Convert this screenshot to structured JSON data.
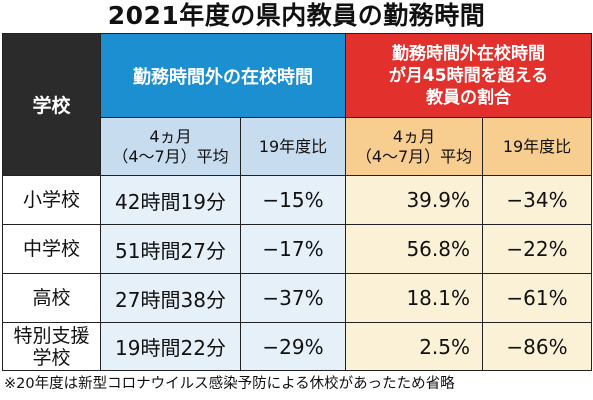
{
  "title": "2021年度の県内教員の勤務時間",
  "header": {
    "school": "学校",
    "group1": "勤務時間外の在校時間",
    "group2_line1": "勤務時間外在校時間",
    "group2_line2": "が月45時間を超える",
    "group2_line3": "教員の割合",
    "sub_period_line1": "4ヵ月",
    "sub_period_line2": "（4〜7月）平均",
    "sub_compare": "19年度比"
  },
  "rows": [
    {
      "school_line1": "小学校",
      "school_line2": "",
      "hours": "42時間19分",
      "hours_change": "−15%",
      "ratio": "39.9%",
      "ratio_change": "−34%"
    },
    {
      "school_line1": "中学校",
      "school_line2": "",
      "hours": "51時間27分",
      "hours_change": "−17%",
      "ratio": "56.8%",
      "ratio_change": "−22%"
    },
    {
      "school_line1": "高校",
      "school_line2": "",
      "hours": "27時間38分",
      "hours_change": "−37%",
      "ratio": "18.1%",
      "ratio_change": "−61%"
    },
    {
      "school_line1": "特別支援",
      "school_line2": "学校",
      "hours": "19時間22分",
      "hours_change": "−29%",
      "ratio": "2.5%",
      "ratio_change": "−86%"
    }
  ],
  "note": "※20年度は新型コロナウイルス感染予防による休校があったため省略",
  "colors": {
    "school_header": "#2b2b2b",
    "blue_header": "#1c8fd0",
    "red_header": "#e2312c",
    "blue_sub": "#c7dcef",
    "orange_sub": "#f7ce8f",
    "blue_cell": "#e6f0f8",
    "yellow_cell": "#fbf1d6"
  }
}
